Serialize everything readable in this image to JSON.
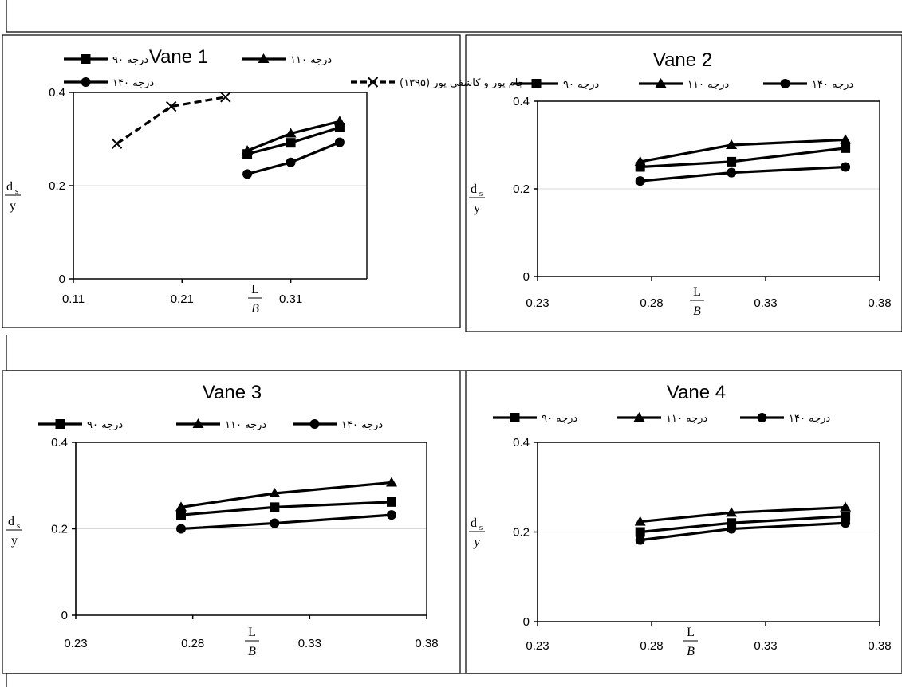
{
  "chart_data": [
    {
      "type": "line",
      "title": "Vane 1",
      "ylabel_num": "d",
      "ylabel_sub": "s",
      "ylabel_den": "y",
      "xlabel_num": "L",
      "xlabel_den": "B",
      "xlim": [
        0.11,
        0.38
      ],
      "ylim": [
        0,
        0.4
      ],
      "xticks": [
        "0.11",
        "0.21",
        "0.31"
      ],
      "yticks": [
        "0",
        "0.2",
        "0.4"
      ],
      "series": [
        {
          "name": "۹۰ درجه",
          "marker": "square",
          "x": [
            0.27,
            0.31,
            0.355
          ],
          "y": [
            0.268,
            0.292,
            0.325
          ]
        },
        {
          "name": "۱۱۰ درجه",
          "marker": "triangle",
          "x": [
            0.27,
            0.31,
            0.355
          ],
          "y": [
            0.275,
            0.312,
            0.338
          ]
        },
        {
          "name": "۱۴۰ درجه",
          "marker": "circle",
          "x": [
            0.27,
            0.31,
            0.355
          ],
          "y": [
            0.225,
            0.25,
            0.293
          ]
        },
        {
          "name": "چام پور و کاشفی پور (۱۳۹۵)",
          "marker": "x",
          "dashed": true,
          "x": [
            0.15,
            0.2,
            0.25
          ],
          "y": [
            0.29,
            0.37,
            0.39
          ]
        }
      ]
    },
    {
      "type": "line",
      "title": "Vane 2",
      "ylabel_num": "d",
      "ylabel_sub": "s",
      "ylabel_den": "y",
      "xlabel_num": "L",
      "xlabel_den": "B",
      "xlim": [
        0.23,
        0.38
      ],
      "ylim": [
        0,
        0.4
      ],
      "xticks": [
        "0.23",
        "0.28",
        "0.33",
        "0.38"
      ],
      "yticks": [
        "0",
        "0.2",
        "0.4"
      ],
      "series": [
        {
          "name": "۹۰ درجه",
          "marker": "square",
          "x": [
            0.275,
            0.315,
            0.365
          ],
          "y": [
            0.25,
            0.262,
            0.293
          ]
        },
        {
          "name": "۱۱۰ درجه",
          "marker": "triangle",
          "x": [
            0.275,
            0.315,
            0.365
          ],
          "y": [
            0.262,
            0.3,
            0.312
          ]
        },
        {
          "name": "۱۴۰ درجه",
          "marker": "circle",
          "x": [
            0.275,
            0.315,
            0.365
          ],
          "y": [
            0.218,
            0.237,
            0.25
          ]
        }
      ]
    },
    {
      "type": "line",
      "title": "Vane 3",
      "ylabel_num": "d",
      "ylabel_sub": "s",
      "ylabel_den": "y",
      "xlabel_num": "L",
      "xlabel_den": "B",
      "xlim": [
        0.23,
        0.38
      ],
      "ylim": [
        0,
        0.4
      ],
      "xticks": [
        "0.23",
        "0.28",
        "0.33",
        "0.38"
      ],
      "yticks": [
        "0",
        "0.2",
        "0.4"
      ],
      "series": [
        {
          "name": "۹۰ درجه",
          "marker": "square",
          "x": [
            0.275,
            0.315,
            0.365
          ],
          "y": [
            0.232,
            0.25,
            0.262
          ]
        },
        {
          "name": "۱۱۰ درجه",
          "marker": "triangle",
          "x": [
            0.275,
            0.315,
            0.365
          ],
          "y": [
            0.25,
            0.282,
            0.307
          ]
        },
        {
          "name": "۱۴۰ درجه",
          "marker": "circle",
          "x": [
            0.275,
            0.315,
            0.365
          ],
          "y": [
            0.2,
            0.213,
            0.232
          ]
        }
      ]
    },
    {
      "type": "line",
      "title": "Vane 4",
      "ylabel_num": "d",
      "ylabel_sub": "s",
      "ylabel_den": "y",
      "xlabel_num": "L",
      "xlabel_den": "B",
      "xlim": [
        0.23,
        0.38
      ],
      "ylim": [
        0,
        0.4
      ],
      "xticks": [
        "0.23",
        "0.28",
        "0.33",
        "0.38"
      ],
      "yticks": [
        "0",
        "0.2",
        "0.4"
      ],
      "series": [
        {
          "name": "۹۰ درجه",
          "marker": "square",
          "x": [
            0.275,
            0.315,
            0.365
          ],
          "y": [
            0.2,
            0.22,
            0.235
          ]
        },
        {
          "name": "۱۱۰ درجه",
          "marker": "triangle",
          "x": [
            0.275,
            0.315,
            0.365
          ],
          "y": [
            0.223,
            0.243,
            0.255
          ]
        },
        {
          "name": "۱۴۰ درجه",
          "marker": "circle",
          "x": [
            0.275,
            0.315,
            0.365
          ],
          "y": [
            0.182,
            0.207,
            0.22
          ]
        }
      ]
    }
  ]
}
